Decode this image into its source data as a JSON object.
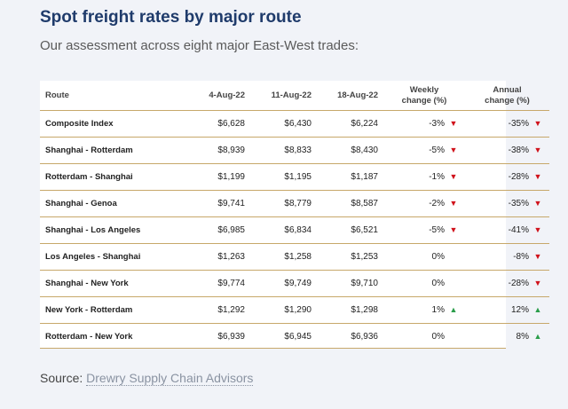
{
  "title": "Spot freight rates by major route",
  "subtitle": "Our assessment across eight major East-West trades:",
  "table": {
    "headers": {
      "route": "Route",
      "d1": "4-Aug-22",
      "d2": "11-Aug-22",
      "d3": "18-Aug-22",
      "weekly_line1": "Weekly",
      "weekly_line2": "change (%)",
      "annual_line1": "Annual",
      "annual_line2": "change (%)"
    },
    "rows": [
      {
        "route": "Composite Index",
        "d1": "$6,628",
        "d2": "$6,430",
        "d3": "$6,224",
        "weekly": "-3%",
        "weekly_dir": "down",
        "annual": "-35%",
        "annual_dir": "down"
      },
      {
        "route": "Shanghai - Rotterdam",
        "d1": "$8,939",
        "d2": "$8,833",
        "d3": "$8,430",
        "weekly": "-5%",
        "weekly_dir": "down",
        "annual": "-38%",
        "annual_dir": "down"
      },
      {
        "route": "Rotterdam - Shanghai",
        "d1": "$1,199",
        "d2": "$1,195",
        "d3": "$1,187",
        "weekly": "-1%",
        "weekly_dir": "down",
        "annual": "-28%",
        "annual_dir": "down"
      },
      {
        "route": "Shanghai - Genoa",
        "d1": "$9,741",
        "d2": "$8,779",
        "d3": "$8,587",
        "weekly": "-2%",
        "weekly_dir": "down",
        "annual": "-35%",
        "annual_dir": "down"
      },
      {
        "route": "Shanghai - Los Angeles",
        "d1": "$6,985",
        "d2": "$6,834",
        "d3": "$6,521",
        "weekly": "-5%",
        "weekly_dir": "down",
        "annual": "-41%",
        "annual_dir": "down"
      },
      {
        "route": "Los Angeles - Shanghai",
        "d1": "$1,263",
        "d2": "$1,258",
        "d3": "$1,253",
        "weekly": "0%",
        "weekly_dir": "none",
        "annual": "-8%",
        "annual_dir": "down"
      },
      {
        "route": "Shanghai - New York",
        "d1": "$9,774",
        "d2": "$9,749",
        "d3": "$9,710",
        "weekly": "0%",
        "weekly_dir": "none",
        "annual": "-28%",
        "annual_dir": "down"
      },
      {
        "route": "New York - Rotterdam",
        "d1": "$1,292",
        "d2": "$1,290",
        "d3": "$1,298",
        "weekly": "1%",
        "weekly_dir": "up",
        "annual": "12%",
        "annual_dir": "up"
      },
      {
        "route": "Rotterdam - New York",
        "d1": "$6,939",
        "d2": "$6,945",
        "d3": "$6,936",
        "weekly": "0%",
        "weekly_dir": "none",
        "annual": "8%",
        "annual_dir": "up"
      }
    ]
  },
  "source": {
    "label": "Source:",
    "link_text": "Drewry Supply Chain Advisors"
  },
  "colors": {
    "title": "#1f3b6b",
    "rule": "#c7a86a",
    "down": "#d0121b",
    "up": "#2a9d4a"
  }
}
